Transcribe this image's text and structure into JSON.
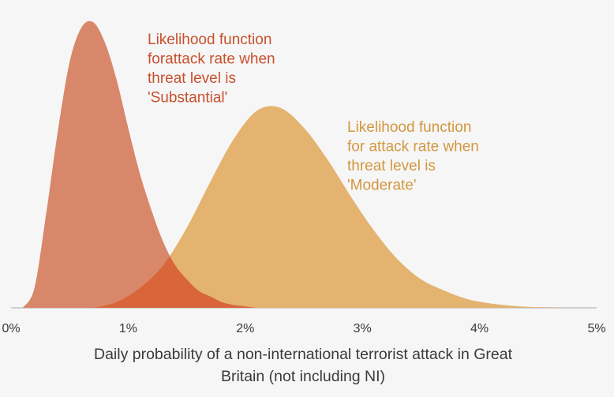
{
  "chart_data": {
    "type": "area",
    "xlabel_lines": [
      "Daily probability of a non-international terrorist attack in Great",
      "Britain (not including NI)"
    ],
    "xlim": [
      0,
      5
    ],
    "ylim": [
      0,
      1
    ],
    "x_tick_labels": [
      "0%",
      "1%",
      "2%",
      "3%",
      "4%",
      "5%"
    ],
    "grid": false,
    "series": [
      {
        "name": "Substantial",
        "color": "#d9876a",
        "x": [
          0.1,
          0.2,
          0.3,
          0.4,
          0.5,
          0.6,
          0.7,
          0.8,
          0.9,
          1.0,
          1.1,
          1.2,
          1.3,
          1.4,
          1.5,
          1.6,
          1.7,
          1.8,
          1.9,
          2.0,
          2.1
        ],
        "y": [
          0.0,
          0.07,
          0.33,
          0.62,
          0.86,
          0.98,
          1.0,
          0.93,
          0.8,
          0.63,
          0.47,
          0.34,
          0.23,
          0.15,
          0.1,
          0.06,
          0.04,
          0.02,
          0.01,
          0.005,
          0.0
        ],
        "annotation_lines": [
          "Likelihood function",
          "forattack rate when",
          "threat level is",
          "'Substantial'"
        ]
      },
      {
        "name": "Moderate",
        "color": "#e3b36f",
        "x": [
          0.7,
          0.9,
          1.1,
          1.3,
          1.5,
          1.7,
          1.9,
          2.1,
          2.3,
          2.5,
          2.7,
          2.9,
          3.1,
          3.3,
          3.5,
          3.7,
          3.9,
          4.1,
          4.3,
          4.5,
          4.7
        ],
        "y": [
          0.0,
          0.02,
          0.07,
          0.15,
          0.28,
          0.44,
          0.59,
          0.69,
          0.7,
          0.63,
          0.52,
          0.39,
          0.27,
          0.17,
          0.1,
          0.06,
          0.03,
          0.015,
          0.006,
          0.002,
          0.0
        ],
        "annotation_lines": [
          "Likelihood function",
          "for attack rate when",
          "threat level is",
          "'Moderate'"
        ]
      }
    ],
    "overlap_color": "#d9663b",
    "annotation_colors": {
      "Substantial": "#c8502d",
      "Moderate": "#d2973f"
    },
    "axis_color": "#cfcfcf"
  }
}
